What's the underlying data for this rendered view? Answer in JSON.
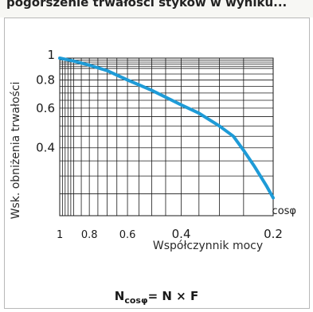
{
  "header": {
    "partial_text": "pogorszenie trwałości styków w wyniku..."
  },
  "chart_data": {
    "type": "line",
    "title": "",
    "xlabel": "Współczynnik mocy",
    "ylabel": "Wsk. obniżenia trwałości",
    "x_unit_label": "cosφ",
    "x_ticks": [
      "1",
      "0.8",
      "0.6",
      "0.4",
      "0.2"
    ],
    "y_ticks": [
      "1",
      "0.8",
      "0.6",
      "0.4"
    ],
    "x_range": [
      1,
      0.2
    ],
    "y_range": [
      0.2,
      1
    ],
    "grid": true,
    "series": [
      {
        "x": [
          1.0,
          0.9,
          0.8,
          0.7,
          0.6,
          0.5,
          0.4,
          0.35,
          0.3,
          0.27,
          0.25,
          0.23,
          0.21,
          0.2
        ],
        "y": [
          1.0,
          0.97,
          0.93,
          0.88,
          0.8,
          0.72,
          0.62,
          0.57,
          0.5,
          0.45,
          0.39,
          0.33,
          0.27,
          0.24
        ]
      }
    ],
    "colors": {
      "line": "#1e9bd7",
      "grid": "#1a1a1a"
    }
  },
  "formula": {
    "lhs": "N",
    "subscript": "cosφ",
    "rhs": "= N × F"
  }
}
